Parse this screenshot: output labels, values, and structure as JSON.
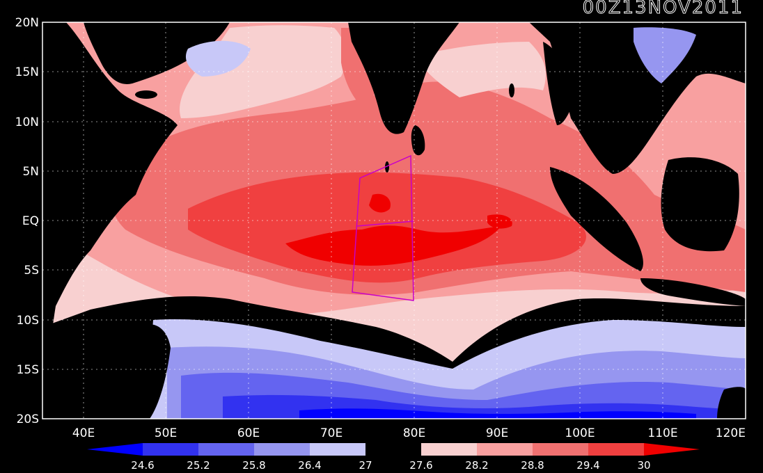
{
  "map": {
    "timestamp": "00Z13NOV2011",
    "lon_ticks": [
      "40E",
      "50E",
      "60E",
      "70E",
      "80E",
      "90E",
      "100E",
      "110E",
      "120E"
    ],
    "lat_ticks": [
      "20N",
      "15N",
      "10N",
      "5N",
      "EQ",
      "5S",
      "10S",
      "15S",
      "20S"
    ],
    "lon_range": [
      35,
      120
    ],
    "lat_range": [
      -20,
      20
    ],
    "grid": true
  },
  "colorbar": {
    "levels": [
      "24.6",
      "25.2",
      "25.8",
      "26.4",
      "27",
      "27.6",
      "28.2",
      "28.8",
      "29.4",
      "30"
    ],
    "colors": [
      "#0000ff",
      "#3232f0",
      "#6464f0",
      "#9696f0",
      "#c8c8f8",
      "#000000",
      "#f8d0d0",
      "#f8a0a0",
      "#f07070",
      "#f04040",
      "#f00000"
    ]
  },
  "box": {
    "color": "#c800c8"
  }
}
